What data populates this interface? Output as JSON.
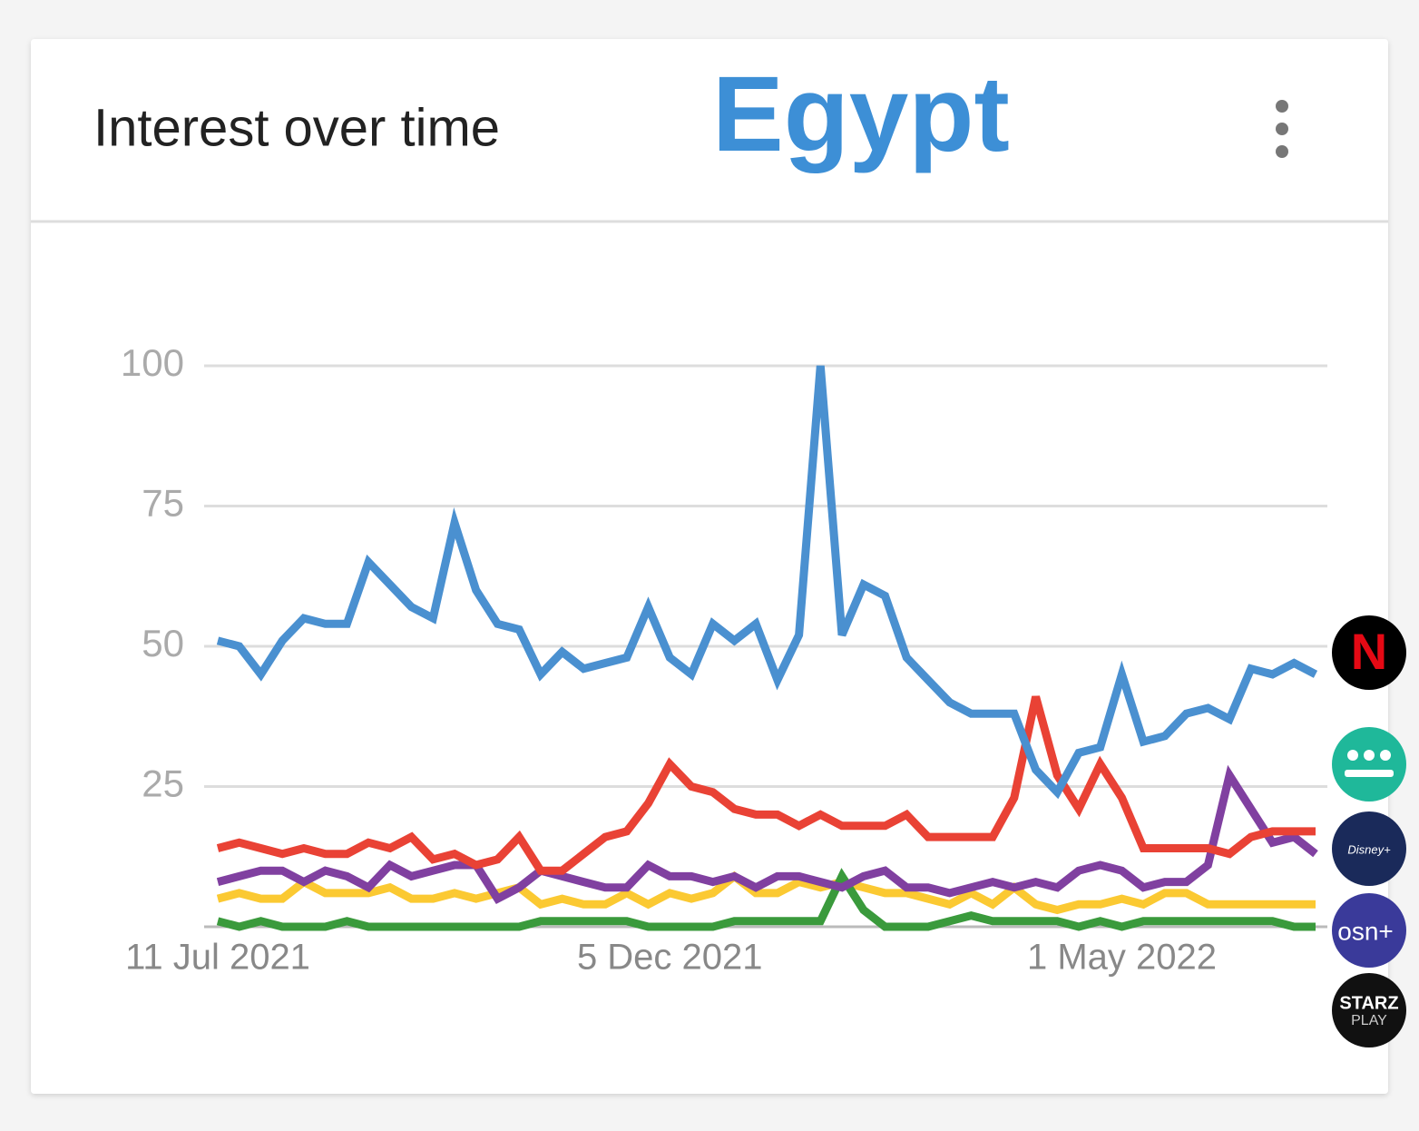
{
  "chart_data": {
    "type": "line",
    "title": "Interest over time",
    "subtitle": "Egypt",
    "categories": [
      "11 Jul 2021",
      null,
      null,
      null,
      null,
      null,
      null,
      null,
      null,
      null,
      null,
      null,
      null,
      null,
      null,
      null,
      null,
      null,
      null,
      null,
      null,
      "5 Dec 2021",
      null,
      null,
      null,
      null,
      null,
      null,
      null,
      null,
      null,
      null,
      null,
      null,
      null,
      null,
      null,
      null,
      null,
      null,
      null,
      null,
      "1 May 2022",
      null,
      null,
      null,
      null,
      null,
      null,
      null,
      null,
      null
    ],
    "series": [
      {
        "color": "#4a90d0",
        "values": [
          51,
          50,
          45,
          51,
          55,
          54,
          54,
          65,
          61,
          57,
          55,
          72,
          60,
          54,
          53,
          45,
          49,
          46,
          47,
          48,
          57,
          48,
          45,
          54,
          51,
          54,
          44,
          52,
          100,
          52,
          61,
          59,
          48,
          44,
          40,
          38,
          38,
          38,
          28,
          24,
          31,
          32,
          45,
          33,
          34,
          38,
          39,
          37,
          46,
          45,
          47,
          45
        ]
      },
      {
        "color": "#e94235",
        "values": [
          14,
          15,
          14,
          13,
          14,
          13,
          13,
          15,
          14,
          16,
          12,
          13,
          11,
          12,
          16,
          10,
          10,
          13,
          16,
          17,
          22,
          29,
          25,
          24,
          21,
          20,
          20,
          18,
          20,
          18,
          18,
          18,
          20,
          16,
          16,
          16,
          16,
          23,
          41,
          27,
          21,
          29,
          23,
          14,
          14,
          14,
          14,
          13,
          16,
          17,
          17,
          17
        ]
      },
      {
        "color": "#fbc932",
        "values": [
          5,
          6,
          5,
          5,
          8,
          6,
          6,
          6,
          7,
          5,
          5,
          6,
          5,
          6,
          7,
          4,
          5,
          4,
          4,
          6,
          4,
          6,
          5,
          6,
          9,
          6,
          6,
          8,
          7,
          8,
          7,
          6,
          6,
          5,
          4,
          6,
          4,
          7,
          4,
          3,
          4,
          4,
          5,
          4,
          6,
          6,
          4,
          4,
          4,
          4,
          4,
          4
        ]
      },
      {
        "color": "#3a9a3c",
        "values": [
          1,
          0,
          1,
          0,
          0,
          0,
          1,
          0,
          0,
          0,
          0,
          0,
          0,
          0,
          0,
          1,
          1,
          1,
          1,
          1,
          0,
          0,
          0,
          0,
          1,
          1,
          1,
          1,
          1,
          9,
          3,
          0,
          0,
          0,
          1,
          2,
          1,
          1,
          1,
          1,
          0,
          1,
          0,
          1,
          1,
          1,
          1,
          1,
          1,
          1,
          0,
          0
        ]
      },
      {
        "color": "#8040a0",
        "values": [
          8,
          9,
          10,
          10,
          8,
          10,
          9,
          7,
          11,
          9,
          10,
          11,
          11,
          5,
          7,
          10,
          9,
          8,
          7,
          7,
          11,
          9,
          9,
          8,
          9,
          7,
          9,
          9,
          8,
          7,
          9,
          10,
          7,
          7,
          6,
          7,
          8,
          7,
          8,
          7,
          10,
          11,
          10,
          7,
          8,
          8,
          11,
          27,
          21,
          15,
          16,
          13
        ]
      }
    ],
    "ylim": [
      0,
      100
    ],
    "yticks": [
      25,
      50,
      75,
      100
    ],
    "grid": true,
    "legend_icons": [
      "N",
      "Disney+",
      "osn+",
      "STARZ",
      "PLAY"
    ]
  }
}
